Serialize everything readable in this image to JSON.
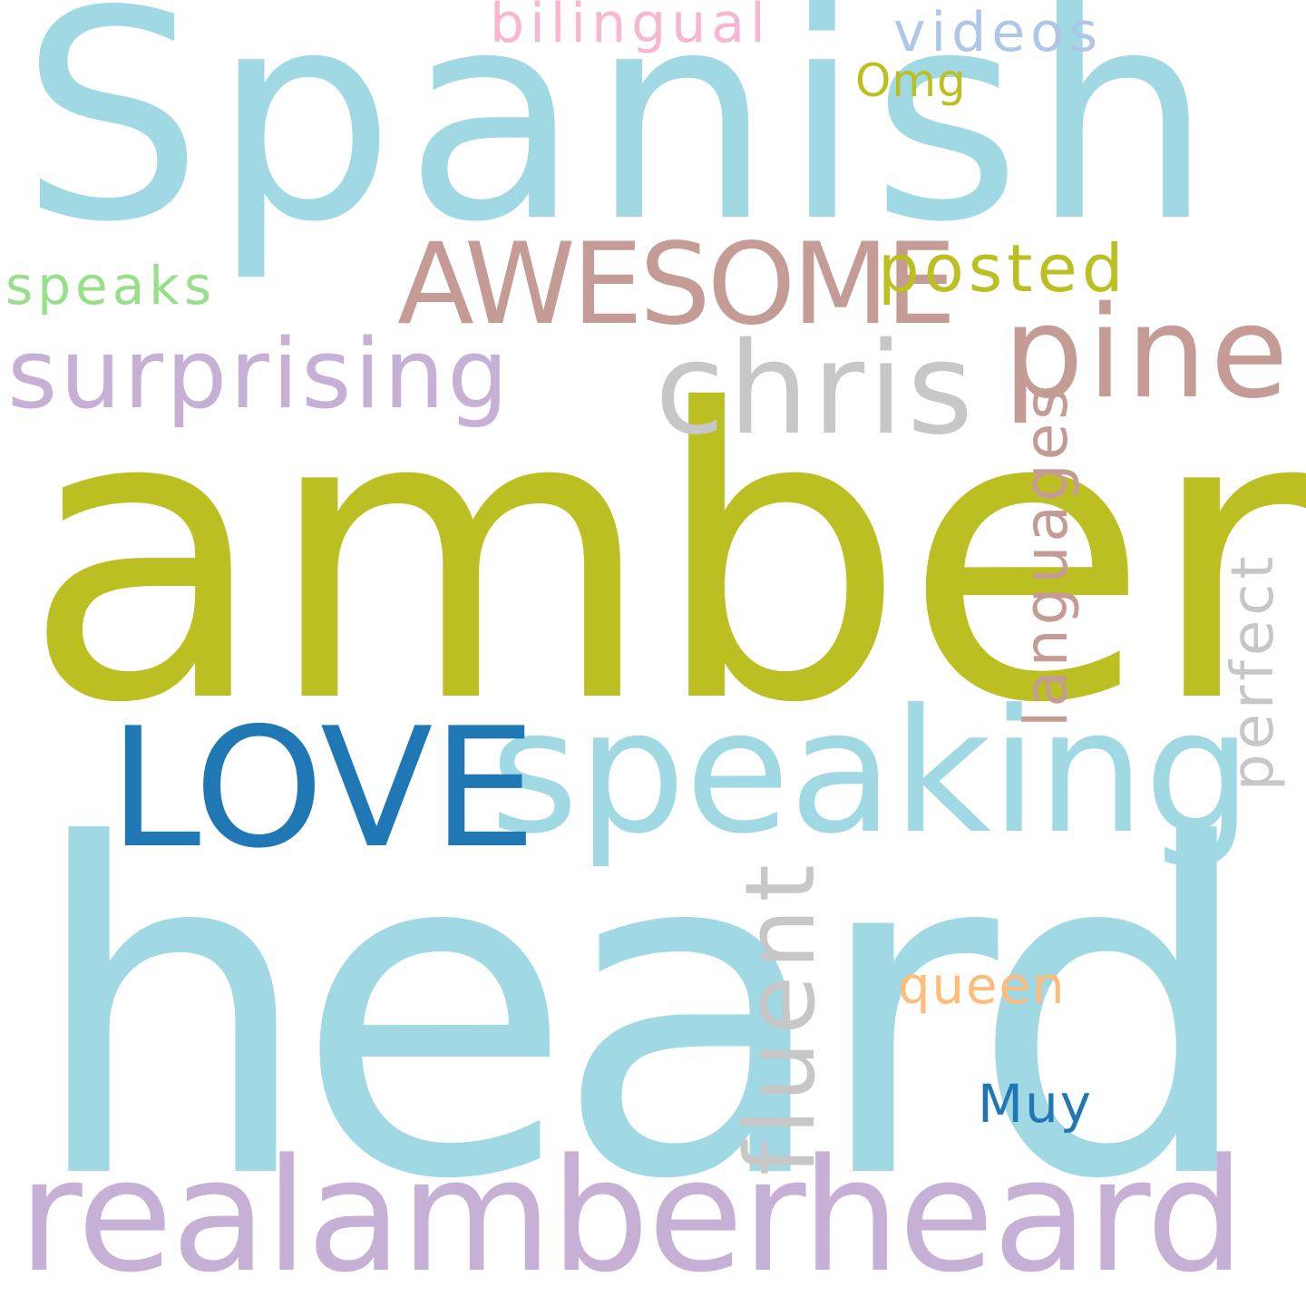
{
  "colors": {
    "background": "#ffffff",
    "light_blue": "#a0d9e4",
    "olive": "#bbbf22",
    "dark_blue": "#1f77b4",
    "lavender": "#c6b0d5",
    "rose_brown": "#c49c95",
    "gray": "#c7c7c7",
    "pink": "#f7b6d2",
    "periwinkle": "#aec7e8",
    "light_green": "#98df8a",
    "peach": "#ffbb78"
  },
  "words": {
    "amber": "amber",
    "heard": "heard",
    "spanish": "Spanish",
    "realamberheard": "realamberheard",
    "speaking": "speaking",
    "love": "LOVE",
    "awesome": "AWESOME",
    "chris": "chris",
    "pine": "pine",
    "surprising": "surprising",
    "posted": "posted",
    "speaks": "speaks",
    "bilingual": "bilingual",
    "videos": "videos",
    "omg": "Omg",
    "languages": "languages",
    "perfect": "perfect",
    "fluent": "fluent",
    "queen": "queen",
    "muy": "Muy"
  }
}
